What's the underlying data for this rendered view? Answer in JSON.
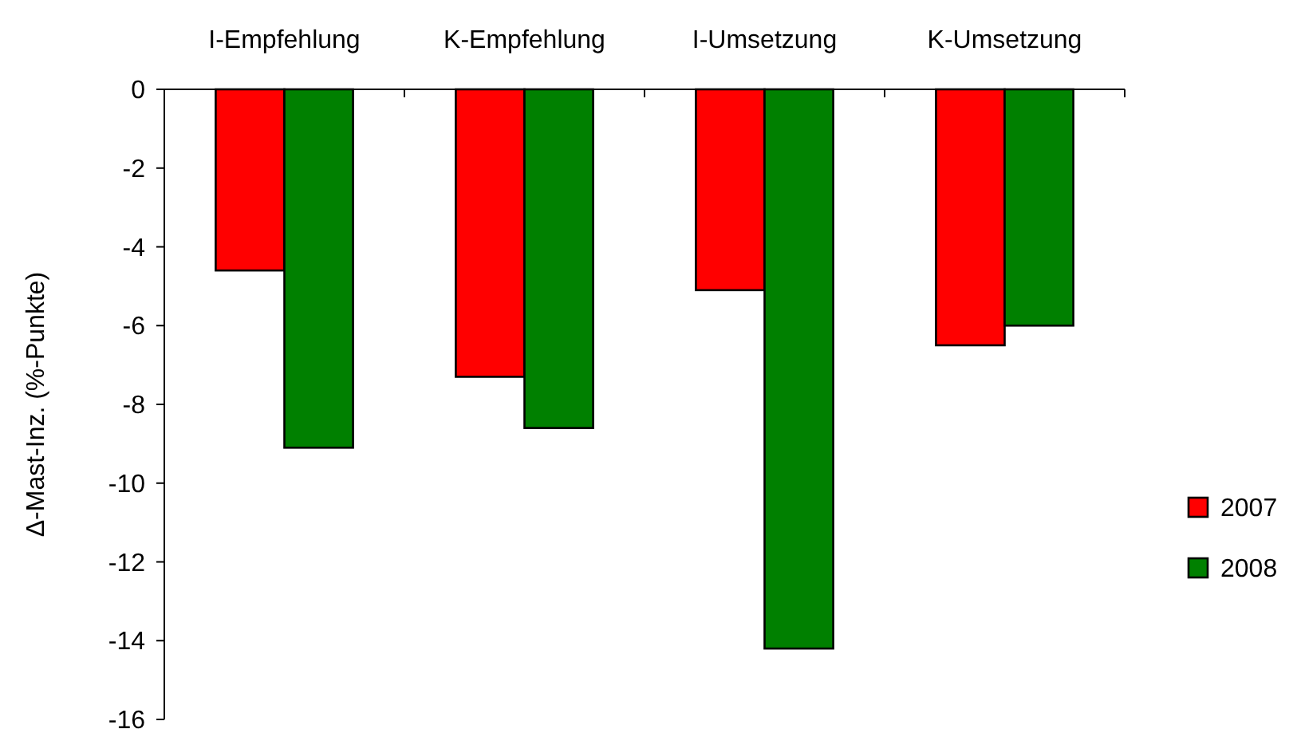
{
  "chart_data": {
    "type": "bar",
    "ylabel": "Δ-Mast-Inz. (%-Punkte)",
    "categories": [
      "I-Empfehlung",
      "K-Empfehlung",
      "I-Umsetzung",
      "K-Umsetzung"
    ],
    "series": [
      {
        "name": "2007",
        "color": "#ff0000",
        "values": [
          -4.6,
          -7.3,
          -5.1,
          -6.5
        ]
      },
      {
        "name": "2008",
        "color": "#008000",
        "values": [
          -9.1,
          -8.6,
          -14.2,
          -6.0
        ]
      }
    ],
    "ylim": [
      -16,
      0
    ],
    "yticks": [
      -16,
      -14,
      -12,
      -10,
      -8,
      -6,
      -4,
      -2,
      0
    ],
    "grid": false,
    "legend": "right"
  }
}
